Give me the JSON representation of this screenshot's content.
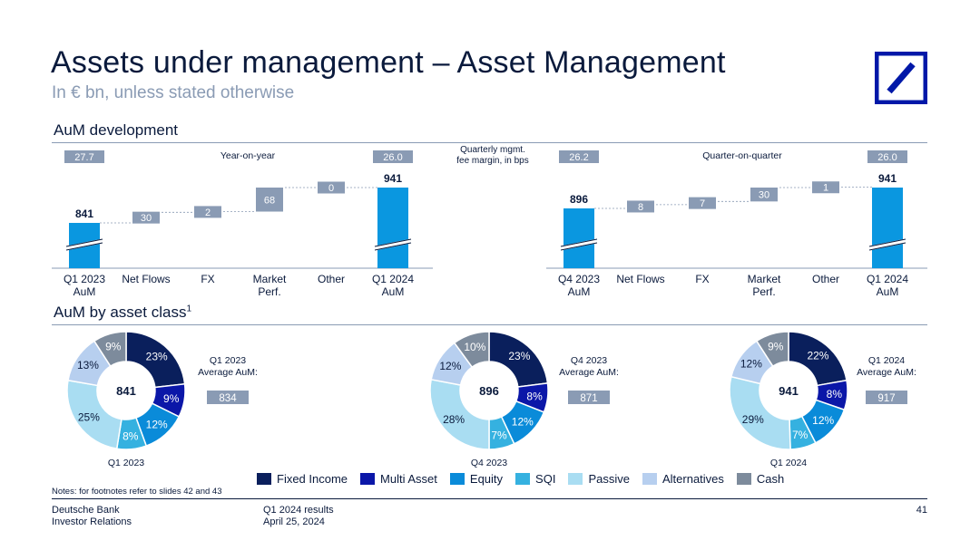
{
  "header": {
    "title": "Assets under management – Asset Management",
    "subtitle": "In € bn, unless stated otherwise"
  },
  "colors": {
    "bar_blue": "#0a97e0",
    "delta_gray": "#8a9bb4",
    "navy": "#0a1a3c",
    "logo_blue": "#0018a8",
    "fixed_income": "#0a1f5c",
    "multi_asset": "#0b17a8",
    "equity": "#0a8bd9",
    "sqi": "#35b1e0",
    "passive": "#a9ddf2",
    "alternatives": "#b7cfef",
    "cash": "#7d8b9c"
  },
  "sections": {
    "development_title": "AuM development",
    "asset_class_title": "AuM by asset class",
    "asset_class_sup": "1",
    "margin_label_line1": "Quarterly mgmt.",
    "margin_label_line2": "fee margin, in bps"
  },
  "chart_data": [
    {
      "type": "bar",
      "subtype": "waterfall",
      "title": "Year-on-year",
      "categories": [
        "Q1 2023\nAuM",
        "Net Flows",
        "FX",
        "Market\nPerf.",
        "Other",
        "Q1 2024\nAuM"
      ],
      "values": [
        841,
        30,
        2,
        68,
        0,
        941
      ],
      "value_labels": [
        "841",
        "30",
        "2",
        "68",
        "0",
        "941"
      ],
      "kinds": [
        "total",
        "delta",
        "delta",
        "delta",
        "delta",
        "total"
      ],
      "fee_margin_start": "27.7",
      "fee_margin_end": "26.0",
      "axis_break": true
    },
    {
      "type": "bar",
      "subtype": "waterfall",
      "title": "Quarter-on-quarter",
      "categories": [
        "Q4 2023\nAuM",
        "Net Flows",
        "FX",
        "Market\nPerf.",
        "Other",
        "Q1 2024\nAuM"
      ],
      "values": [
        896,
        8,
        7,
        30,
        1,
        941
      ],
      "value_labels": [
        "896",
        "8",
        "7",
        "30",
        "1",
        "941"
      ],
      "kinds": [
        "total",
        "delta",
        "delta",
        "delta",
        "delta",
        "total"
      ],
      "fee_margin_start": "26.2",
      "fee_margin_end": "26.0",
      "axis_break": true
    },
    {
      "type": "pie",
      "subtype": "donut",
      "title": "Q1 2023",
      "center": "841",
      "avg_label_line1": "Q1 2023",
      "avg_label_line2": "Average AuM:",
      "avg_value": "834",
      "categories": [
        "Fixed Income",
        "Multi Asset",
        "Equity",
        "SQI",
        "Passive",
        "Alternatives",
        "Cash"
      ],
      "values": [
        23,
        9,
        12,
        8,
        25,
        13,
        9
      ]
    },
    {
      "type": "pie",
      "subtype": "donut",
      "title": "Q4 2023",
      "center": "896",
      "avg_label_line1": "Q4 2023",
      "avg_label_line2": "Average AuM:",
      "avg_value": "871",
      "categories": [
        "Fixed Income",
        "Multi Asset",
        "Equity",
        "SQI",
        "Passive",
        "Alternatives",
        "Cash"
      ],
      "values": [
        23,
        8,
        12,
        7,
        28,
        12,
        10
      ]
    },
    {
      "type": "pie",
      "subtype": "donut",
      "title": "Q1 2024",
      "center": "941",
      "avg_label_line1": "Q1 2024",
      "avg_label_line2": "Average AuM:",
      "avg_value": "917",
      "categories": [
        "Fixed Income",
        "Multi Asset",
        "Equity",
        "SQI",
        "Passive",
        "Alternatives",
        "Cash"
      ],
      "values": [
        22,
        8,
        12,
        7,
        29,
        12,
        9
      ]
    }
  ],
  "legend": [
    {
      "label": "Fixed Income",
      "color": "#0a1f5c"
    },
    {
      "label": "Multi Asset",
      "color": "#0b17a8"
    },
    {
      "label": "Equity",
      "color": "#0a8bd9"
    },
    {
      "label": "SQI",
      "color": "#35b1e0"
    },
    {
      "label": "Passive",
      "color": "#a9ddf2"
    },
    {
      "label": "Alternatives",
      "color": "#b7cfef"
    },
    {
      "label": "Cash",
      "color": "#7d8b9c"
    }
  ],
  "footer": {
    "notes": "Notes: for footnotes refer to slides 42 and 43",
    "company": "Deutsche Bank",
    "department": "Investor Relations",
    "report": "Q1 2024 results",
    "date": "April 25, 2024",
    "page_number": "41"
  }
}
